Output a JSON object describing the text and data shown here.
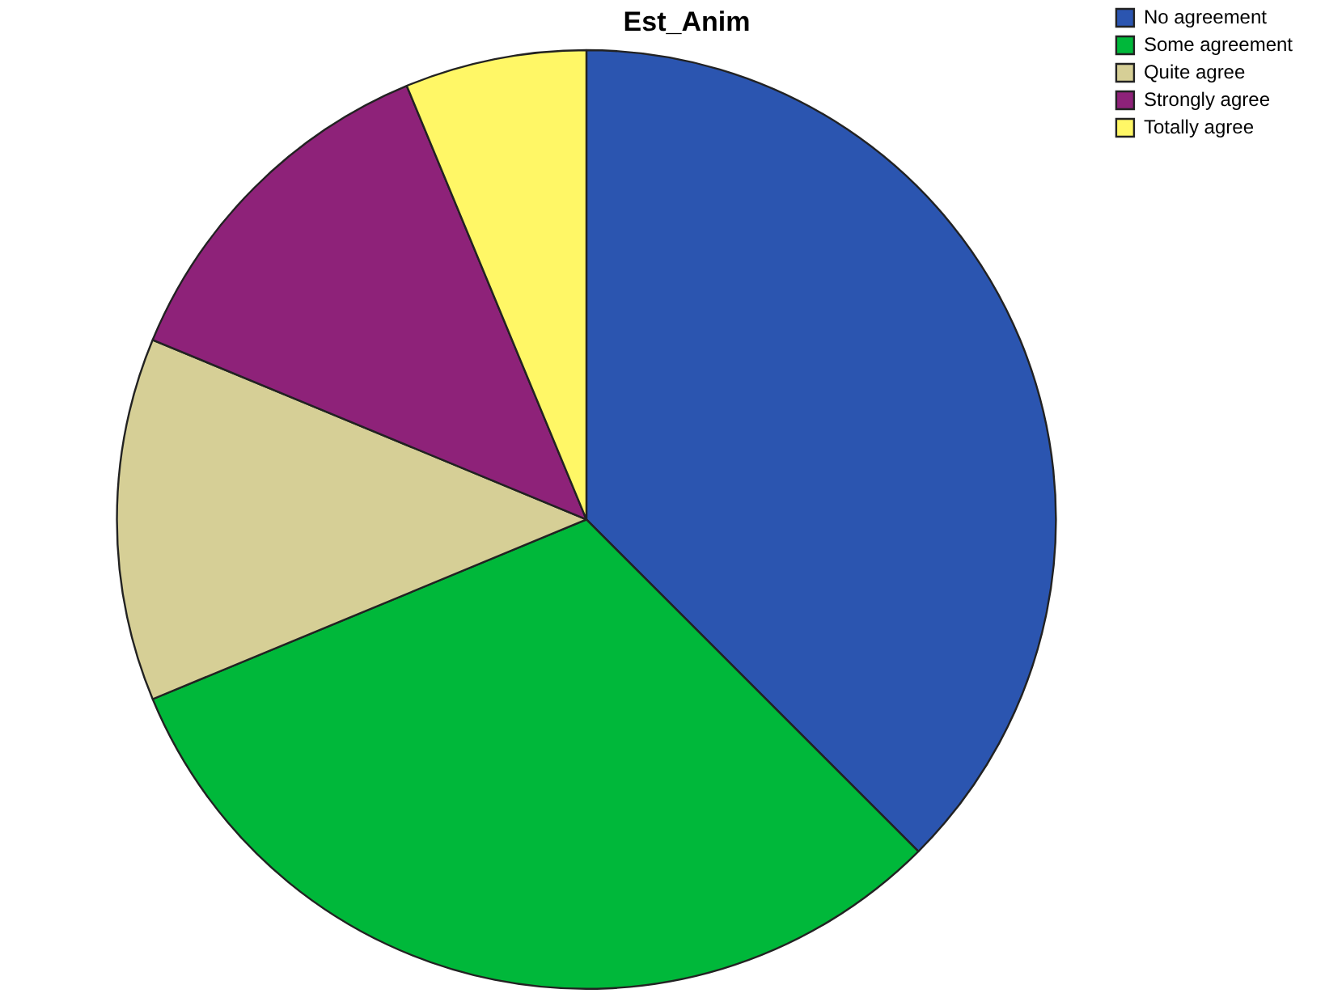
{
  "chart_data": {
    "type": "pie",
    "title": "Est_Anim",
    "categories": [
      "No agreement",
      "Some agreement",
      "Quite agree",
      "Strongly agree",
      "Totally agree"
    ],
    "values": [
      37.5,
      31.25,
      12.5,
      12.5,
      6.25
    ],
    "colors": [
      "#2b55b0",
      "#00b83a",
      "#d6cf96",
      "#8e2279",
      "#fff766"
    ],
    "legend": "top right"
  }
}
